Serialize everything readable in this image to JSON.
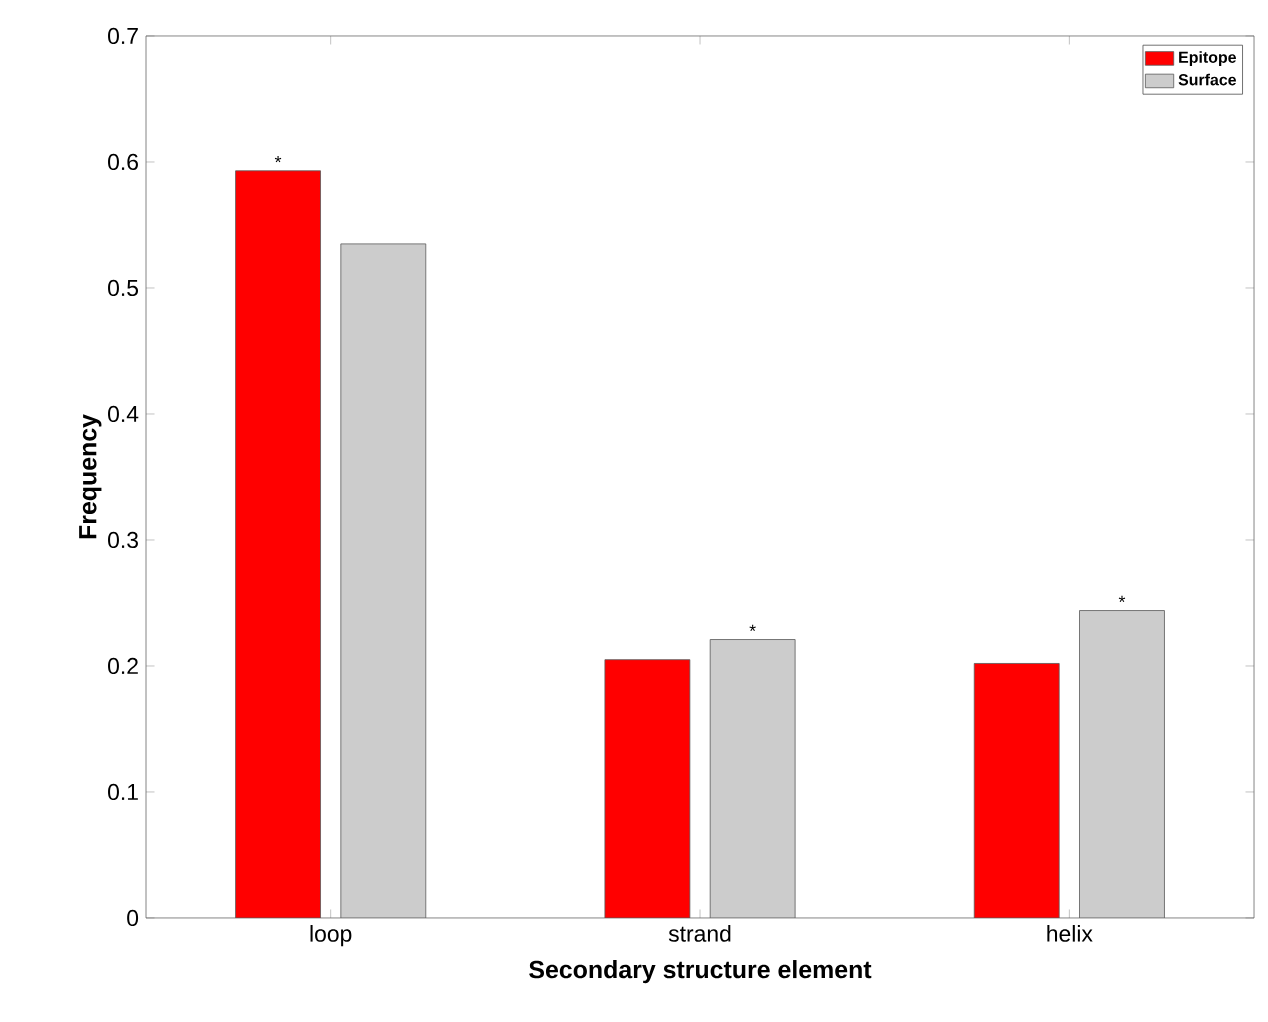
{
  "chart_data": {
    "type": "bar",
    "xlabel": "Secondary structure element",
    "ylabel": "Frequency",
    "categories": [
      "loop",
      "strand",
      "helix"
    ],
    "series": [
      {
        "name": "Epitope",
        "color": "#ff0000",
        "values": [
          0.593,
          0.205,
          0.202
        ]
      },
      {
        "name": "Surface",
        "color": "#cccccc",
        "values": [
          0.535,
          0.221,
          0.244
        ]
      }
    ],
    "ylim": [
      0,
      0.7
    ],
    "yticks": [
      0,
      0.1,
      0.2,
      0.3,
      0.4,
      0.5,
      0.6,
      0.7
    ],
    "legend": "top right",
    "annotations": [
      "*",
      "*",
      "*"
    ]
  }
}
